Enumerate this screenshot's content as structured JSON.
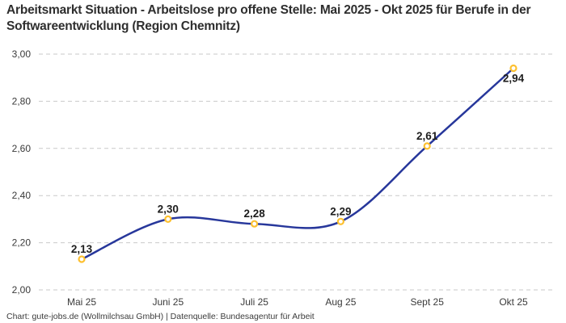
{
  "title": "Arbeitsmarkt Situation - Arbeitslose pro offene Stelle: Mai 2025 - Okt 2025 für Berufe in der Softwareentwicklung (Region Chemnitz)",
  "footer": "Chart: gute-jobs.de (Wollmilchsau GmbH) | Datenquelle: Bundesagentur für Arbeit",
  "colors": {
    "background": "#ffffff",
    "line": "#27379b",
    "marker_ring": "#fdc02f",
    "marker_fill": "#ffffff",
    "grid": "#c9c9c9",
    "title_text": "#2e2e2e",
    "axis_text": "#3a3a3a",
    "value_label_text": "#1d1d1d",
    "footer_text": "#3c3c3c"
  },
  "chart_data": {
    "type": "line",
    "title": "Arbeitsmarkt Situation - Arbeitslose pro offene Stelle: Mai 2025 - Okt 2025 für Berufe in der Softwareentwicklung (Region Chemnitz)",
    "categories": [
      "Mai 25",
      "Juni 25",
      "Juli 25",
      "Aug 25",
      "Sept 25",
      "Okt 25"
    ],
    "values": [
      2.13,
      2.3,
      2.28,
      2.29,
      2.61,
      2.94
    ],
    "value_labels": [
      "2,13",
      "2,30",
      "2,28",
      "2,29",
      "2,61",
      "2,94"
    ],
    "label_positions": [
      "above",
      "above",
      "above",
      "above",
      "above",
      "below"
    ],
    "xlabel": "",
    "ylabel": "",
    "ylim": [
      2.0,
      3.0
    ],
    "ytick_step": 0.2,
    "ytick_labels": [
      "2,00",
      "2,20",
      "2,40",
      "2,60",
      "2,80",
      "3,00"
    ],
    "grid": "horizontal-dashed",
    "legend": "none",
    "line_style": "smooth",
    "marker_style": "open-circle"
  }
}
